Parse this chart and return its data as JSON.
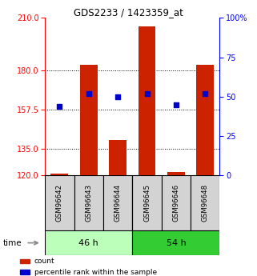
{
  "title": "GDS2233 / 1423359_at",
  "samples": [
    "GSM96642",
    "GSM96643",
    "GSM96644",
    "GSM96645",
    "GSM96646",
    "GSM96648"
  ],
  "counts": [
    121,
    183,
    140,
    205,
    122,
    183
  ],
  "percentiles": [
    44,
    52,
    50,
    52,
    45,
    52
  ],
  "groups": [
    {
      "label": "46 h",
      "color_light": "#ccffcc",
      "color_dark": "#44dd44",
      "n": 3
    },
    {
      "label": "54 h",
      "color_light": "#ccffcc",
      "color_dark": "#44dd44",
      "n": 3
    }
  ],
  "group46_color": "#bbffbb",
  "group54_color": "#33cc33",
  "ylim_left": [
    120,
    210
  ],
  "ylim_right": [
    0,
    100
  ],
  "yticks_left": [
    120,
    135,
    157.5,
    180,
    210
  ],
  "yticks_right": [
    0,
    25,
    50,
    75,
    100
  ],
  "hlines": [
    135,
    157.5,
    180
  ],
  "bar_color": "#cc2200",
  "dot_color": "#0000cc",
  "bar_width": 0.6,
  "legend_items": [
    {
      "label": "count",
      "color": "#cc2200"
    },
    {
      "label": "percentile rank within the sample",
      "color": "#0000cc"
    }
  ]
}
